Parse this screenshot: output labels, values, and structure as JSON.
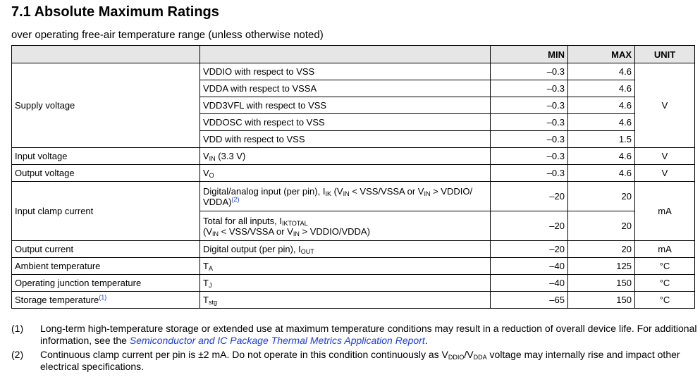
{
  "section_title": "7.1 Absolute Maximum Ratings",
  "subtitle": "over operating free-air temperature range (unless otherwise noted)",
  "table": {
    "headers": {
      "min": "MIN",
      "max": "MAX",
      "unit": "UNIT"
    },
    "supply": {
      "param": "Supply voltage",
      "unit": "V",
      "rows": [
        {
          "cond": "VDDIO with respect to VSS",
          "min": "–0.3",
          "max": "4.6"
        },
        {
          "cond": "VDDA with respect to VSSA",
          "min": "–0.3",
          "max": "4.6"
        },
        {
          "cond": "VDD3VFL with respect to VSS",
          "min": "–0.3",
          "max": "4.6"
        },
        {
          "cond": "VDDOSC with respect to VSS",
          "min": "–0.3",
          "max": "4.6"
        },
        {
          "cond": "VDD with respect to VSS",
          "min": "–0.3",
          "max": "1.5"
        }
      ]
    },
    "input_voltage": {
      "param": "Input voltage",
      "sym": "V",
      "sub": "IN",
      "tail": " (3.3 V)",
      "min": "–0.3",
      "max": "4.6",
      "unit": "V"
    },
    "output_voltage": {
      "param": "Output voltage",
      "sym": "V",
      "sub": "O",
      "min": "–0.3",
      "max": "4.6",
      "unit": "V"
    },
    "clamp": {
      "param": "Input clamp current",
      "unit": "mA",
      "row1": {
        "a": "Digital/analog input (per pin), I",
        "a_sub": "IK",
        "b": " (V",
        "b_sub": "IN",
        "c": " < VSS/VSSA or V",
        "c_sub": "IN",
        "d": " > VDDIO/ VDDA)",
        "ref": "(2)",
        "min": "–20",
        "max": "20"
      },
      "row2": {
        "a": "Total for all inputs, I",
        "a_sub": "IKTOTAL",
        "b": "(V",
        "b_sub": "IN",
        "c": " < VSS/VSSA or V",
        "c_sub": "IN",
        "d": " > VDDIO/VDDA)",
        "min": "–20",
        "max": "20"
      }
    },
    "output_current": {
      "param": "Output current",
      "pre": "Digital output (per pin), I",
      "sub": "OUT",
      "min": "–20",
      "max": "20",
      "unit": "mA"
    },
    "ambient": {
      "param": "Ambient temperature",
      "sym": "T",
      "sub": "A",
      "min": "–40",
      "max": "125",
      "unit": "°C"
    },
    "junction": {
      "param": "Operating junction temperature",
      "sym": "T",
      "sub": "J",
      "min": "–40",
      "max": "150",
      "unit": "°C"
    },
    "storage": {
      "param": "Storage temperature",
      "ref": "(1)",
      "sym": "T",
      "sub": "stg",
      "min": "–65",
      "max": "150",
      "unit": "°C"
    }
  },
  "notes": {
    "n1": {
      "mark": "(1)",
      "text": "Long-term high-temperature storage or extended use at maximum temperature conditions may result in a reduction of overall device life. For additional information, see the ",
      "link": "Semiconductor and IC Package Thermal Metrics Application Report",
      "end": "."
    },
    "n2": {
      "mark": "(2)",
      "a": "Continuous clamp current per pin is ±2 mA. Do not operate in this condition continuously as V",
      "sub1": "DDIO",
      "mid": "/V",
      "sub2": "DDA",
      "b": " voltage may internally rise and impact other electrical specifications."
    }
  }
}
